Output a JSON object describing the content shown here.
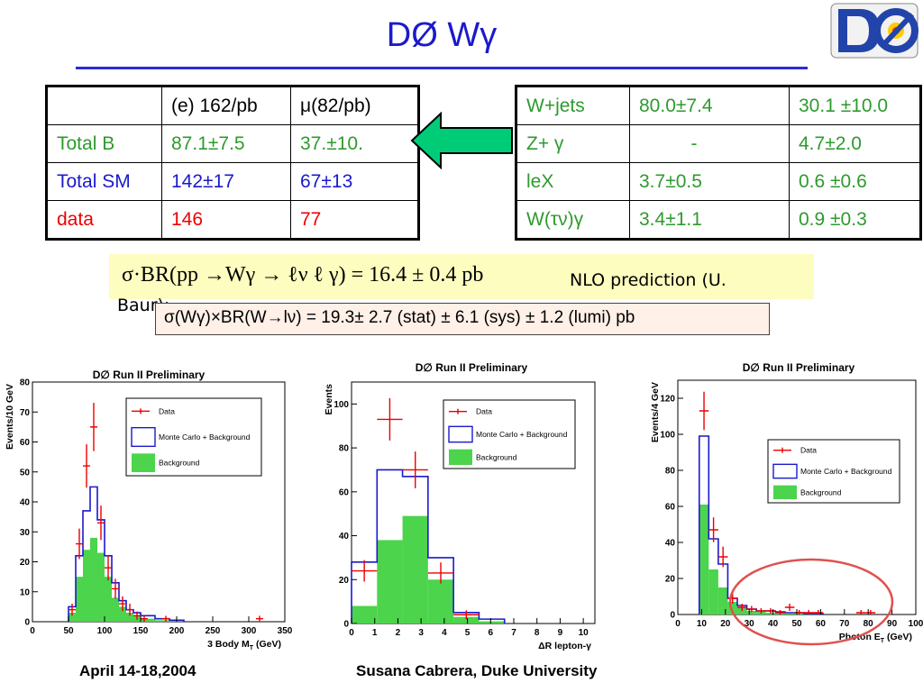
{
  "slide": {
    "title": "DØ Wγ",
    "footer_date": "April 14-18,2004",
    "footer_author": "Susana Cabrera, Duke University"
  },
  "table1": {
    "header": [
      "",
      "(e) 162/pb",
      "μ(82/pb)"
    ],
    "rows": [
      {
        "label": "Total B",
        "e": "87.1±7.5",
        "mu": "37.±10."
      },
      {
        "label": "Total SM",
        "e": "142±17",
        "mu": "67±13"
      },
      {
        "label": "data",
        "e": "146",
        "mu": "77"
      }
    ]
  },
  "table2": {
    "rows": [
      {
        "label": "W+jets",
        "e": "80.0±7.4",
        "mu": "30.1 ±10.0"
      },
      {
        "label": "Z+ γ",
        "e": "-",
        "mu": "4.7±2.0"
      },
      {
        "label": "leX",
        "e": "3.7±0.5",
        "mu": "0.6 ±0.6"
      },
      {
        "label": "W(τν)γ",
        "e": "3.4±1.1",
        "mu": "0.9 ±0.3"
      }
    ]
  },
  "formula": {
    "text": "σ·BR(pp →Wγ → ℓν ℓ γ) = 16.4 ± 0.4 pb",
    "nlo_line1": "NLO prediction (U.",
    "nlo_line2": "Baur):"
  },
  "measurement": "σ(Wγ)×BR(W→lν) = 19.3± 2.7 (stat) ± 6.1 (sys) ±  1.2 (lumi) pb",
  "colors": {
    "title": "#1a1acc",
    "green": "#2e9a2e",
    "red": "#ee0000",
    "arrow": "#00cc77",
    "background_fill": "#4cd44c",
    "mc_line": "#1a1acc",
    "ellipse": "#e05050"
  },
  "chart_data": [
    {
      "type": "histogram",
      "title": "D∅ Run II Preliminary",
      "xlabel": "3 Body M",
      "xlabel_sub": "T",
      "xlabel_unit": " (GeV)",
      "ylabel": "Events/10 GeV",
      "xlim": [
        0,
        350
      ],
      "ylim": [
        0,
        80
      ],
      "xticks": [
        0,
        50,
        100,
        150,
        200,
        250,
        300,
        350
      ],
      "yticks": [
        0,
        10,
        20,
        30,
        40,
        50,
        60,
        70,
        80
      ],
      "legend": [
        "Data",
        "Monte Carlo + Background",
        "Background"
      ],
      "bin_edges": [
        50,
        60,
        70,
        80,
        90,
        100,
        110,
        120,
        130,
        140,
        150,
        160,
        170,
        180,
        190,
        200,
        210
      ],
      "mc": [
        5,
        22,
        37,
        45,
        34,
        22,
        13,
        7,
        4,
        3,
        2,
        2,
        1,
        1,
        0.5,
        0.5
      ],
      "background": [
        3,
        15,
        24,
        28,
        23,
        15,
        8,
        5,
        3,
        2,
        1,
        1,
        0.5,
        0.5,
        0.3,
        0.3
      ],
      "data_points": [
        {
          "x": 55,
          "y": 4
        },
        {
          "x": 65,
          "y": 26
        },
        {
          "x": 75,
          "y": 52
        },
        {
          "x": 85,
          "y": 65
        },
        {
          "x": 95,
          "y": 33
        },
        {
          "x": 105,
          "y": 18
        },
        {
          "x": 115,
          "y": 11
        },
        {
          "x": 125,
          "y": 6
        },
        {
          "x": 135,
          "y": 4
        },
        {
          "x": 145,
          "y": 2
        },
        {
          "x": 155,
          "y": 1
        },
        {
          "x": 185,
          "y": 1
        },
        {
          "x": 315,
          "y": 1
        }
      ],
      "data_xerr": 5
    },
    {
      "type": "histogram",
      "title": "D∅ Run II Preliminary",
      "xlabel": "ΔR lepton-γ",
      "ylabel": "Events",
      "xlim": [
        0,
        10.5
      ],
      "ylim": [
        0,
        110
      ],
      "xticks": [
        0,
        1,
        2,
        3,
        4,
        5,
        6,
        7,
        8,
        9,
        10
      ],
      "yticks": [
        0,
        20,
        40,
        60,
        80,
        100
      ],
      "legend": [
        "Data",
        "Monte Carlo + Background",
        "Background"
      ],
      "bin_edges": [
        0,
        1.1,
        2.2,
        3.3,
        4.4,
        5.5,
        6.6
      ],
      "mc": [
        28,
        70,
        67,
        30,
        5,
        2
      ],
      "background": [
        8,
        38,
        49,
        20,
        3,
        1
      ],
      "data_points": [
        {
          "x": 0.55,
          "y": 24
        },
        {
          "x": 1.65,
          "y": 93
        },
        {
          "x": 2.75,
          "y": 70
        },
        {
          "x": 3.85,
          "y": 23
        },
        {
          "x": 4.95,
          "y": 4
        }
      ],
      "data_xerr": 0.55
    },
    {
      "type": "histogram",
      "title": "D∅ Run II Preliminary",
      "xlabel": "Photon E",
      "xlabel_sub": "T",
      "xlabel_unit": " (GeV)",
      "ylabel": "Events/4 GeV",
      "xlim": [
        0,
        100
      ],
      "ylim": [
        0,
        130
      ],
      "xticks": [
        0,
        10,
        20,
        30,
        40,
        50,
        60,
        70,
        80,
        90,
        100
      ],
      "yticks": [
        0,
        20,
        40,
        60,
        80,
        100,
        120
      ],
      "legend": [
        "Data",
        "Monte Carlo + Background",
        "Background"
      ],
      "bin_edges": [
        9,
        13,
        17,
        21,
        25,
        29,
        33,
        37,
        41,
        45,
        49,
        53,
        57,
        61
      ],
      "mc": [
        99,
        42,
        28,
        9,
        5,
        3,
        2,
        2,
        1.5,
        1,
        1,
        0.5,
        0.5
      ],
      "background": [
        61,
        25,
        15,
        7,
        4,
        2,
        1.5,
        1,
        1,
        0.5,
        0.5,
        0.3,
        0.3
      ],
      "data_points": [
        {
          "x": 11,
          "y": 113
        },
        {
          "x": 15,
          "y": 47
        },
        {
          "x": 19,
          "y": 32
        },
        {
          "x": 23,
          "y": 9
        },
        {
          "x": 27,
          "y": 4
        },
        {
          "x": 31,
          "y": 3
        },
        {
          "x": 35,
          "y": 2
        },
        {
          "x": 39,
          "y": 2
        },
        {
          "x": 43,
          "y": 1
        },
        {
          "x": 47,
          "y": 4
        },
        {
          "x": 51,
          "y": 1
        },
        {
          "x": 55,
          "y": 1
        },
        {
          "x": 59,
          "y": 1
        },
        {
          "x": 77,
          "y": 1
        },
        {
          "x": 81,
          "y": 1
        }
      ],
      "data_xerr": 2
    }
  ]
}
